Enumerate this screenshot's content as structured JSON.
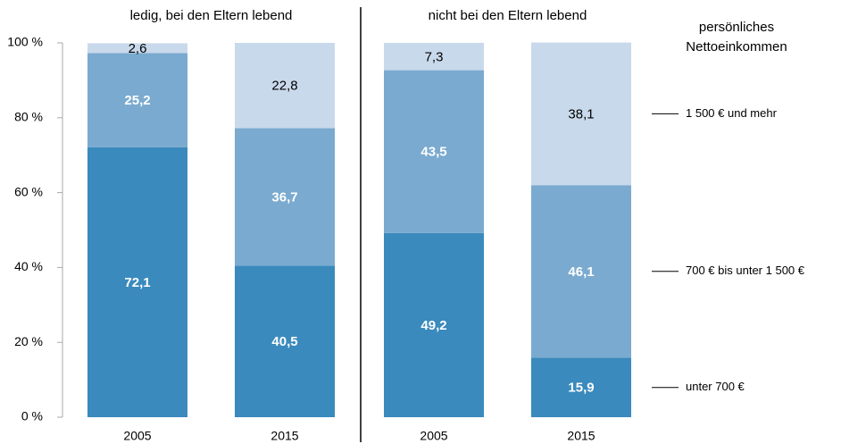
{
  "chart_data": {
    "type": "stacked_bar",
    "groups": [
      "ledig, bei den Eltern lebend",
      "nicht bei den Eltern lebend"
    ],
    "categories": [
      "2005",
      "2015",
      "2005",
      "2015"
    ],
    "legend_title": "persönliches Nettoeinkommen",
    "series": [
      {
        "name": "unter 700 €",
        "color": "#3a8abd",
        "values": [
          72.1,
          40.5,
          49.2,
          15.9
        ],
        "value_labels": [
          "72,1",
          "40,5",
          "49,2",
          "15,9"
        ]
      },
      {
        "name": "700 € bis unter 1 500 €",
        "color": "#7aaacf",
        "values": [
          25.2,
          36.7,
          43.5,
          46.1
        ],
        "value_labels": [
          "25,2",
          "36,7",
          "43,5",
          "46,1"
        ]
      },
      {
        "name": "1 500 € und mehr",
        "color": "#c9d9ec",
        "values": [
          2.6,
          22.8,
          7.3,
          38.1
        ],
        "value_labels": [
          "2,6",
          "22,8",
          "7,3",
          "38,1"
        ]
      }
    ],
    "ylim": [
      0,
      100
    ],
    "yticks": [
      {
        "value": 0,
        "label": "0 %"
      },
      {
        "value": 20,
        "label": "20 %"
      },
      {
        "value": 40,
        "label": "40 %"
      },
      {
        "value": 60,
        "label": "60 %"
      },
      {
        "value": 80,
        "label": "80 %"
      },
      {
        "value": 100,
        "label": "100 %"
      }
    ]
  }
}
